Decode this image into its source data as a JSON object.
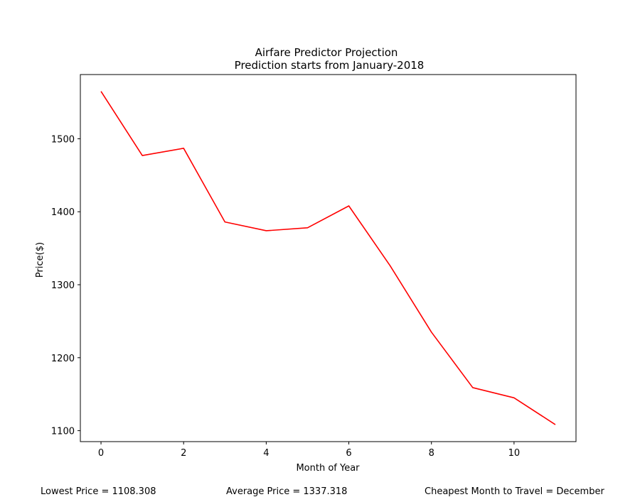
{
  "chart_data": {
    "type": "line",
    "title": "Airfare Predictor Projection",
    "subtitle": "Prediction starts from January-2018",
    "xlabel": "Month of Year",
    "ylabel": "Price($)",
    "x": [
      0,
      1,
      2,
      3,
      4,
      5,
      6,
      7,
      8,
      9,
      10,
      11
    ],
    "series": [
      {
        "values": [
          1565,
          1477,
          1487,
          1386,
          1374,
          1378,
          1408,
          1326,
          1235,
          1159,
          1145,
          1108.308
        ],
        "color": "#ff0000"
      }
    ],
    "xlim": [
      -0.5,
      11.5
    ],
    "ylim": [
      1085,
      1588
    ],
    "xticks": [
      0,
      2,
      4,
      6,
      8,
      10
    ],
    "yticks": [
      1100,
      1200,
      1300,
      1400,
      1500
    ],
    "grid": false,
    "legend": "none"
  },
  "footer": {
    "lowest": "Lowest Price = 1108.308",
    "average": "Average Price = 1337.318",
    "cheapest": "Cheapest Month to Travel = December"
  }
}
